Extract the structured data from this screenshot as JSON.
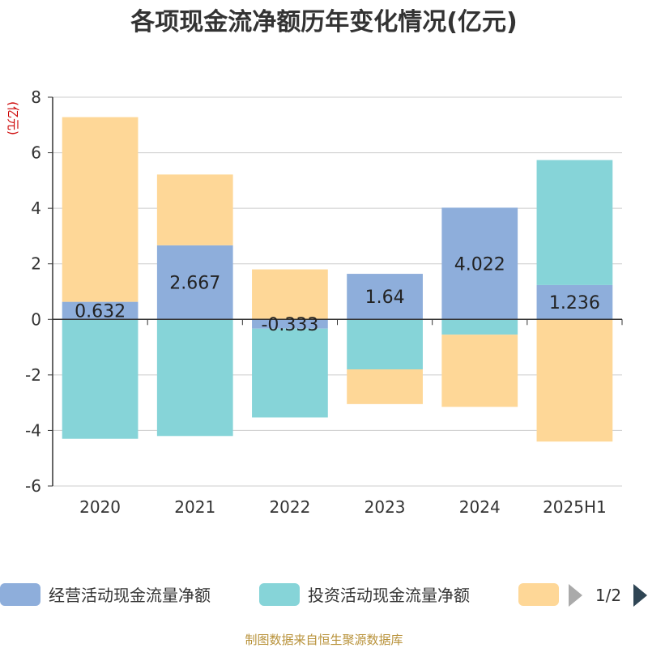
{
  "chart_data": {
    "type": "bar",
    "stacked": true,
    "title": "各项现金流净额历年变化情况(亿元)",
    "ylabel": "(亿元)",
    "categories": [
      "2020",
      "2021",
      "2022",
      "2023",
      "2024",
      "2025H1"
    ],
    "ylim": [
      -6,
      8
    ],
    "yticks": [
      8,
      6,
      4,
      2,
      0,
      -2,
      -4,
      -6
    ],
    "grid": true,
    "legend_position": "bottom",
    "series": [
      {
        "name": "经营活动现金流量净额",
        "color": "#8eaedb",
        "values": [
          0.632,
          2.667,
          -0.333,
          1.64,
          4.022,
          1.236
        ],
        "labels": [
          "0.632",
          "2.667",
          "-0.333",
          "1.64",
          "4.022",
          "1.236"
        ]
      },
      {
        "name": "投资活动现金流量净额",
        "color": "#86d4d8",
        "values": [
          -4.3,
          -4.2,
          -3.2,
          -1.8,
          -0.55,
          4.5
        ]
      },
      {
        "name": "",
        "color": "#fed797",
        "values": [
          6.65,
          2.55,
          1.8,
          -1.25,
          -2.6,
          -4.4
        ]
      }
    ]
  },
  "legend": {
    "page": "1/2",
    "prev_icon": "triangle-left-icon",
    "next_icon": "triangle-right-icon"
  },
  "footer": {
    "source": "制图数据来自恒生聚源数据库"
  }
}
